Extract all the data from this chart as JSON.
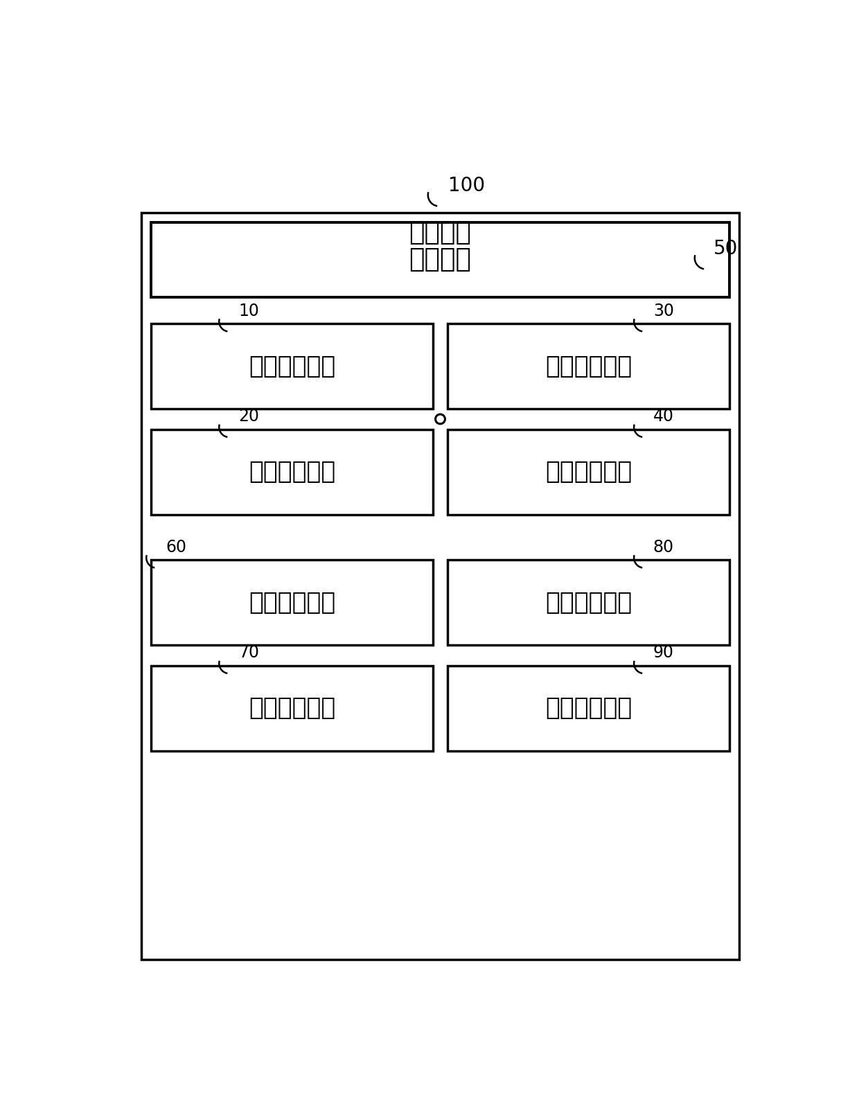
{
  "title_label": "100",
  "outer_box_label": "通信终端",
  "outer_box_sublabel": "50",
  "setting_module_label": "设置模块",
  "module_10_label": "合并提示模块",
  "module_10_num": "10",
  "module_20_label": "合并处理模块",
  "module_20_num": "20",
  "module_30_label": "拆分提示模块",
  "module_30_num": "30",
  "module_40_label": "拆分处理模块",
  "module_40_num": "40",
  "module_60_label": "标签显示模块",
  "module_60_num": "60",
  "module_70_label": "标签处理模块",
  "module_70_num": "70",
  "module_80_label": "区分显示模块",
  "module_80_num": "80",
  "module_90_label": "信息回复模块",
  "module_90_num": "90",
  "bg_color": "#ffffff",
  "box_edge_color": "#000000",
  "text_color": "#000000"
}
